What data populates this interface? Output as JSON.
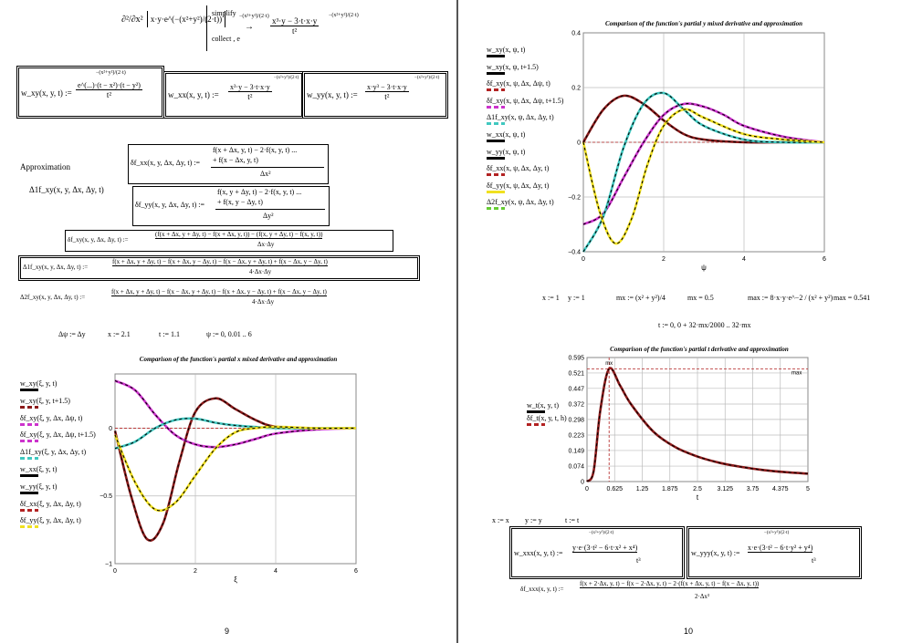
{
  "left": {
    "page_number": "9",
    "mixed_derivative_header": {
      "operator": "∂²/∂x²",
      "integrand": "x·y·e^(−(x²+y²)/(2·t))",
      "simplify": "simplify",
      "collect": "collect , e",
      "collect_exp": "−(x²+y²)/(2·t)",
      "result_num": "x³·y − 3·t·x·y",
      "result_den": "t²",
      "result_exp": "−(x²+y²)/(2·t)"
    },
    "def_wxy": {
      "lhs": "w_xy(x, y, t) :=",
      "exp": "−(x²+y²)/(2·t)",
      "num": "e^(...)·(t − x²)·(t − y²)",
      "den": "t²"
    },
    "def_wxx": {
      "lhs": "w_xx(x, y, t) :=",
      "num": "x³·y − 3·t·x·y",
      "den": "t²",
      "exp": "−(x²+y²)/(2·t)"
    },
    "def_wyy": {
      "lhs": "w_yy(x, y, t) :=",
      "num": "x·y³ − 3·t·x·y",
      "den": "t²",
      "exp": "−(x²+y²)/(2·t)"
    },
    "approximation_label": "Approximation",
    "delta1_label": "Δ1f_xy(x, y, Δx, Δy, t)",
    "def_dfxx": {
      "lhs": "δf_xx(x, y, Δx, Δy, t) :=",
      "num1": "f(x + Δx, y, t) − 2·f(x, y, t) ...",
      "num2": "+ f(x − Δx, y, t)",
      "den": "Δx²"
    },
    "def_dfyy": {
      "lhs": "δf_yy(x, y, Δx, Δy, t) :=",
      "num1": "f(x, y + Δy, t) − 2·f(x, y, t) ...",
      "num2": "+ f(x, y − Δy, t)",
      "den": "Δy²"
    },
    "def_dfxy": {
      "lhs": "δf_xy(x, y, Δx, Δy, t) :=",
      "num": "(f(x + Δx, y + Δy, t) − f(x + Δx, y, t)) − (f(x, y + Δy, t) − f(x, y, t))",
      "den": "Δx·Δy"
    },
    "def_d1fxy": {
      "lhs": "Δ1f_xy(x, y, Δx, Δy, t) :=",
      "num": "f(x + Δx, y + Δy, t) − f(x + Δx, y − Δy, t) − f(x − Δx, y + Δy, t) + f(x − Δx, y − Δy, t)",
      "den": "4·Δx·Δy"
    },
    "def_d2fxy": {
      "lhs": "Δ2f_xy(x, y, Δx, Δy, t) :=",
      "num": "f(x + Δx, y + Δy, t) − f(x − Δx, y + Δy, t) − f(x + Δx, y − Δy, t) + f(x − Δx, y − Δy, t)",
      "den": "4·Δx·Δy"
    },
    "params": {
      "dpsi": "Δψ := Δy",
      "x": "x := 2.1",
      "t": "t := 1.1",
      "psi": "ψ := 0, 0.01 .. 6"
    },
    "legend": [
      "w_xy(ξ, y, t)",
      "w_xy(ξ, y, t+1.5)",
      "δf_xy(ξ, y, Δx, Δψ, t)",
      "δf_xy(ξ, y, Δx, Δψ, t+1.5)",
      "Δ1f_xy(ξ, y, Δx, Δy, t)",
      "w_xx(ξ, y, t)",
      "w_yy(ξ, y, t)",
      "δf_xx(ξ, y, Δx, Δy, t)",
      "δf_yy(ξ, y, Δx, Δy, t)"
    ]
  },
  "right": {
    "page_number": "10",
    "legend": [
      "w_xy(x, ψ, t)",
      "w_xy(x, ψ, t+1.5)",
      "δf_xy(x, ψ, Δx, Δψ, t)",
      "δf_xy(x, ψ, Δx, Δψ, t+1.5)",
      "Δ1f_xy(x, ψ, Δx, Δy, t)",
      "w_xx(x, ψ, t)",
      "w_yy(x, ψ, t)",
      "δf_xx(x, ψ, Δx, Δy, t)",
      "δf_yy(x, ψ, Δx, Δy, t)",
      "Δ2f_xy(x, ψ, Δx, Δy, t)"
    ],
    "params": {
      "x": "x := 1",
      "y": "y := 1",
      "mx_def": "mx := (x² + y²)/4",
      "mx_val": "mx = 0.5",
      "max_def": "max := 8·x·y·e^−2 / (x² + y²)",
      "max_val": "max = 0.541",
      "t_range": "t := 0, 0 + 32·mx/2000 .. 32·mx"
    },
    "legend_t": [
      "w_t(x, y, t)",
      "δf_t(x, y, t, h)"
    ],
    "reset": {
      "x": "x := x",
      "y": "y := y",
      "t": "t := t"
    },
    "def_wxxx": {
      "lhs": "w_xxx(x, y, t) :=",
      "pre": "y·e",
      "exp": "−(x²+y²)/(2·t)",
      "poly": "·(3·t² − 6·t·x² + x⁴)",
      "den": "t³"
    },
    "def_wyyy": {
      "lhs": "w_yyy(x, y, t) :=",
      "pre": "x·e",
      "exp": "−(x²+y²)/(2·t)",
      "poly": "·(3·t² − 6·t·y² + y⁴)",
      "den": "t³"
    },
    "def_dfxxx": {
      "lhs": "δf_xxx(x, y, t) :=",
      "num": "f(x + 2·Δx, y, t) − f(x − 2·Δx, y, t) − 2·(f(x + Δx, y, t) − f(x − Δx, y, t))",
      "den": "2·Δx³"
    }
  },
  "chart_data": [
    {
      "type": "line",
      "title": "Comparison of the function's partial x mixed derivative and approximation",
      "xlabel": "ξ",
      "ylabel": "",
      "xlim": [
        0,
        6
      ],
      "ylim": [
        -1,
        0.4
      ],
      "xticks": [
        "0",
        "2",
        "4",
        "6"
      ],
      "yticks": [
        "0",
        "−0.5",
        "−1"
      ],
      "grid": true,
      "series": [
        {
          "name": "w_xy(ξ, y, t)",
          "color": "#8b1a1a",
          "x": [
            0,
            0.4,
            0.8,
            1.2,
            1.6,
            2.0,
            2.5,
            3.0,
            3.5,
            4.0,
            5.0,
            6.0
          ],
          "values": [
            -0.02,
            -0.5,
            -0.82,
            -0.7,
            -0.25,
            0.12,
            0.22,
            0.14,
            0.06,
            0.01,
            0.0,
            0.0
          ]
        },
        {
          "name": "w_xy(ξ, y, t+1.5)",
          "color": "#cc33cc",
          "x": [
            0,
            0.5,
            1.0,
            1.5,
            2.0,
            2.5,
            3.0,
            3.5,
            4.0,
            5.0,
            6.0
          ],
          "values": [
            0.35,
            0.28,
            0.1,
            -0.05,
            -0.12,
            -0.14,
            -0.12,
            -0.08,
            -0.04,
            -0.01,
            0.0
          ]
        },
        {
          "name": "Δ1f_xy(ξ, y, Δx, Δy, t)",
          "color": "#40c8c0",
          "x": [
            0,
            0.5,
            1.0,
            1.5,
            2.0,
            2.5,
            3.0,
            4.0,
            5.0,
            6.0
          ],
          "values": [
            -0.15,
            -0.1,
            0.0,
            0.06,
            0.07,
            0.04,
            0.02,
            0.0,
            0.0,
            0.0
          ]
        },
        {
          "name": "δf_xx(ξ, y, Δx, Δy, t)",
          "color": "#f0e020",
          "x": [
            0,
            0.5,
            1.0,
            1.5,
            2.0,
            2.5,
            3.0,
            3.5,
            4.0,
            5.0,
            6.0
          ],
          "values": [
            -0.05,
            -0.4,
            -0.6,
            -0.55,
            -0.35,
            -0.15,
            -0.03,
            0.0,
            0.01,
            0.0,
            0.0
          ]
        }
      ]
    },
    {
      "type": "line",
      "title": "Comparison of the function's partial y mixed derivative and approximation",
      "xlabel": "ψ",
      "ylabel": "",
      "xlim": [
        0,
        6
      ],
      "ylim": [
        -0.4,
        0.4
      ],
      "xticks": [
        "0",
        "2",
        "4",
        "6"
      ],
      "yticks": [
        "0.4",
        "0.2",
        "0",
        "−0.2",
        "−0.4"
      ],
      "grid": true,
      "series": [
        {
          "name": "w_xy(x, ψ, t)",
          "color": "#8b1a1a",
          "x": [
            0,
            0.5,
            1.0,
            1.5,
            2.0,
            2.5,
            3.0,
            4.0,
            5.0,
            6.0
          ],
          "values": [
            0.0,
            0.12,
            0.17,
            0.14,
            0.08,
            0.03,
            0.01,
            0.0,
            0.0,
            0.0
          ]
        },
        {
          "name": "w_xy(x, ψ, t+1.5)",
          "color": "#cc33cc",
          "x": [
            0,
            0.5,
            1.0,
            1.5,
            2.0,
            2.5,
            3.0,
            3.5,
            4.0,
            5.0,
            6.0
          ],
          "values": [
            -0.3,
            -0.26,
            -0.13,
            0.0,
            0.1,
            0.14,
            0.13,
            0.1,
            0.06,
            0.02,
            0.0
          ]
        },
        {
          "name": "Δ1f_xy(x, ψ, Δx, Δy, t)",
          "color": "#40c8c0",
          "x": [
            0,
            0.5,
            1.0,
            1.5,
            2.0,
            2.5,
            3.0,
            4.0,
            5.0,
            6.0
          ],
          "values": [
            -0.4,
            -0.27,
            -0.02,
            0.14,
            0.18,
            0.12,
            0.06,
            0.01,
            0.0,
            0.0
          ]
        },
        {
          "name": "δf_xx(x, ψ, Δx, Δy, t)",
          "color": "#f0e020",
          "x": [
            0,
            0.4,
            0.8,
            1.2,
            1.6,
            2.0,
            2.5,
            3.0,
            4.0,
            5.0,
            6.0
          ],
          "values": [
            0.0,
            -0.25,
            -0.37,
            -0.28,
            -0.08,
            0.06,
            0.12,
            0.09,
            0.03,
            0.01,
            0.0
          ]
        }
      ]
    },
    {
      "type": "line",
      "title": "Comparison of the function's partial t derivative and approximation",
      "xlabel": "t",
      "ylabel": "",
      "xlim": [
        0,
        5
      ],
      "ylim": [
        0,
        0.595
      ],
      "xticks": [
        "0",
        "0.625",
        "1.25",
        "1.875",
        "2.5",
        "3.125",
        "3.75",
        "4.375",
        "5"
      ],
      "yticks": [
        "0.595",
        "0.521",
        "0.447",
        "0.372",
        "0.298",
        "0.223",
        "0.149",
        "0.074",
        "0"
      ],
      "grid": true,
      "annotations": [
        "mx",
        "max"
      ],
      "series": [
        {
          "name": "w_t(x, y, t)",
          "color": "#8b1a1a",
          "x": [
            0,
            0.15,
            0.3,
            0.5,
            0.75,
            1.0,
            1.5,
            2.0,
            2.5,
            3.0,
            3.5,
            4.0,
            4.5,
            5.0
          ],
          "values": [
            0.0,
            0.05,
            0.34,
            0.541,
            0.46,
            0.37,
            0.24,
            0.165,
            0.12,
            0.09,
            0.07,
            0.055,
            0.045,
            0.038
          ]
        }
      ]
    }
  ]
}
